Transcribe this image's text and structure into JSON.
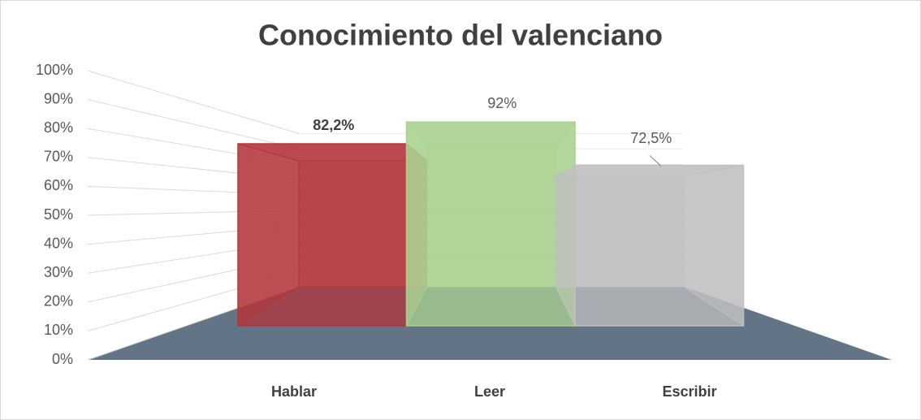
{
  "chart_data": {
    "type": "bar3d",
    "title": "Conocimiento del valenciano",
    "categories": [
      "Hablar",
      "Leer",
      "Escribir"
    ],
    "values": [
      82.2,
      92,
      72.5
    ],
    "value_labels": [
      "82,2%",
      "92%",
      "72,5%"
    ],
    "colors": [
      "#b3353c",
      "#a9d18e",
      "#bfbfbf"
    ],
    "ylim": [
      0,
      100
    ],
    "yticks": [
      {
        "value": 0,
        "label": "0%"
      },
      {
        "value": 10,
        "label": "10%"
      },
      {
        "value": 20,
        "label": "20%"
      },
      {
        "value": 30,
        "label": "30%"
      },
      {
        "value": 40,
        "label": "40%"
      },
      {
        "value": 50,
        "label": "50%"
      },
      {
        "value": 60,
        "label": "60%"
      },
      {
        "value": 70,
        "label": "70%"
      },
      {
        "value": 80,
        "label": "80%"
      },
      {
        "value": 90,
        "label": "90%"
      },
      {
        "value": 100,
        "label": "100%"
      }
    ],
    "grid": true
  }
}
